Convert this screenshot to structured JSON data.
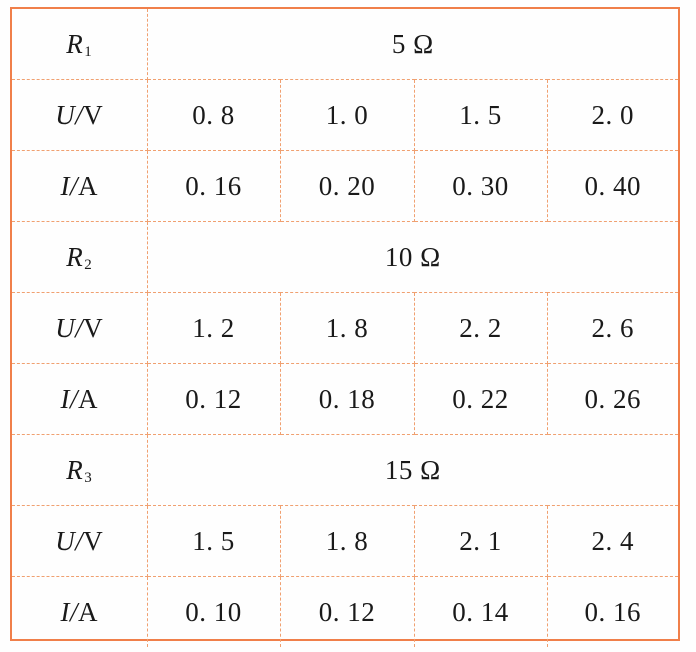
{
  "groups": [
    {
      "resistor_symbol": "R",
      "resistor_index": "1",
      "resistance": "5 Ω",
      "voltage_label": "U/",
      "voltage_unit": "V",
      "current_label": "I/",
      "current_unit": "A",
      "voltages": [
        "0. 8",
        "1. 0",
        "1. 5",
        "2. 0"
      ],
      "currents": [
        "0. 16",
        "0. 20",
        "0. 30",
        "0. 40"
      ]
    },
    {
      "resistor_symbol": "R",
      "resistor_index": "2",
      "resistance": "10 Ω",
      "voltage_label": "U/",
      "voltage_unit": "V",
      "current_label": "I/",
      "current_unit": "A",
      "voltages": [
        "1. 2",
        "1. 8",
        "2. 2",
        "2. 6"
      ],
      "currents": [
        "0. 12",
        "0. 18",
        "0. 22",
        "0. 26"
      ]
    },
    {
      "resistor_symbol": "R",
      "resistor_index": "3",
      "resistance": "15 Ω",
      "voltage_label": "U/",
      "voltage_unit": "V",
      "current_label": "I/",
      "current_unit": "A",
      "voltages": [
        "1. 5",
        "1. 8",
        "2. 1",
        "2. 4"
      ],
      "currents": [
        "0. 10",
        "0. 12",
        "0. 14",
        "0. 16"
      ]
    }
  ]
}
